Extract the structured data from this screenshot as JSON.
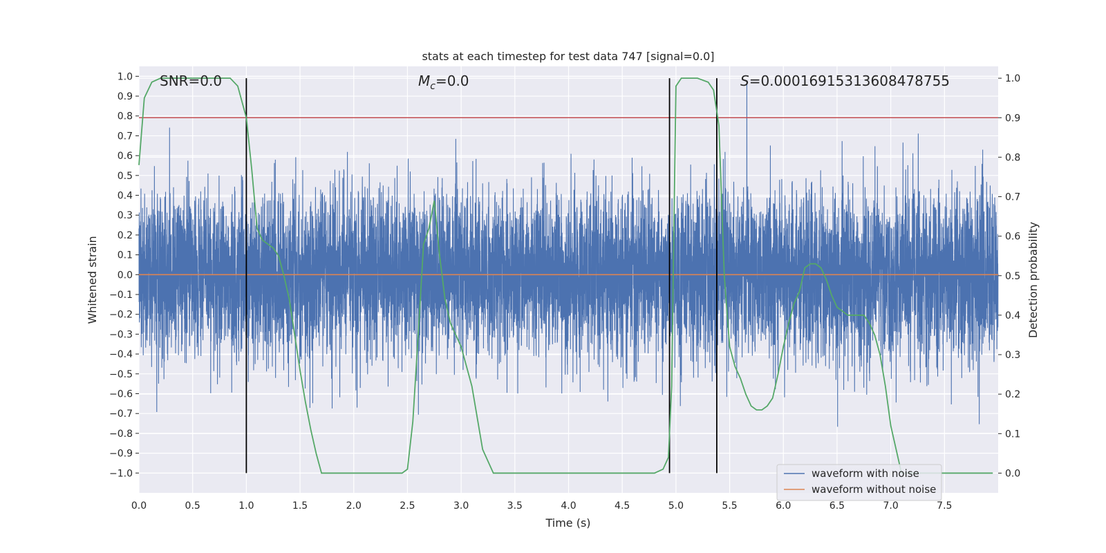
{
  "chart_data": {
    "type": "line",
    "title": "stats at each timestep for test data 747 [signal=0.0]",
    "xlabel": "Time (s)",
    "ylabel": "Whitened strain",
    "y2label": "Detection probability",
    "xlim": [
      0.0,
      8.0
    ],
    "ylim": [
      -1.1,
      1.05
    ],
    "y2lim": [
      -0.05,
      1.03
    ],
    "xticks": [
      0.0,
      0.5,
      1.0,
      1.5,
      2.0,
      2.5,
      3.0,
      3.5,
      4.0,
      4.5,
      5.0,
      5.5,
      6.0,
      6.5,
      7.0,
      7.5
    ],
    "yticks": [
      -1.0,
      -0.9,
      -0.8,
      -0.7,
      -0.6,
      -0.5,
      -0.4,
      -0.3,
      -0.2,
      -0.1,
      0.0,
      0.1,
      0.2,
      0.3,
      0.4,
      0.5,
      0.6,
      0.7,
      0.8,
      0.9,
      1.0
    ],
    "y2ticks": [
      0.0,
      0.1,
      0.2,
      0.3,
      0.4,
      0.5,
      0.6,
      0.7,
      0.8,
      0.9,
      1.0
    ],
    "annotations": {
      "snr": "SNR=0.0",
      "mc_symbol": "M",
      "mc_sub": "c",
      "mc_rest": "=0.0",
      "s_symbol": "S",
      "s_rest": "=0.00016915313608478755"
    },
    "threshold": 0.9,
    "vlines": [
      1.0,
      4.94,
      5.38
    ],
    "series": [
      {
        "name": "waveform with noise",
        "color": "#4c72b0",
        "kind": "noise",
        "seed": 747,
        "n": 8000,
        "sigma": 0.21
      },
      {
        "name": "waveform without noise",
        "color": "#dd8452",
        "kind": "line",
        "x": [
          0.0,
          8.0
        ],
        "y": [
          0.0,
          0.0
        ]
      },
      {
        "name": "detection probability",
        "color": "#55a868",
        "axis": "right",
        "x": [
          0.0,
          0.05,
          0.12,
          0.2,
          0.3,
          0.5,
          0.7,
          0.78,
          0.85,
          0.92,
          1.0,
          1.05,
          1.1,
          1.15,
          1.2,
          1.25,
          1.3,
          1.35,
          1.4,
          1.45,
          1.5,
          1.55,
          1.6,
          1.65,
          1.7,
          1.8,
          2.0,
          2.2,
          2.35,
          2.45,
          2.5,
          2.55,
          2.6,
          2.65,
          2.7,
          2.75,
          2.8,
          2.85,
          2.9,
          3.0,
          3.1,
          3.15,
          3.2,
          3.3,
          3.5,
          4.0,
          4.5,
          4.8,
          4.88,
          4.93,
          4.96,
          5.0,
          5.05,
          5.1,
          5.2,
          5.3,
          5.35,
          5.4,
          5.45,
          5.5,
          5.55,
          5.6,
          5.65,
          5.7,
          5.75,
          5.8,
          5.85,
          5.9,
          5.95,
          6.0,
          6.05,
          6.1,
          6.15,
          6.2,
          6.25,
          6.3,
          6.35,
          6.4,
          6.45,
          6.5,
          6.55,
          6.6,
          6.65,
          6.7,
          6.75,
          6.8,
          6.85,
          6.9,
          6.95,
          7.0,
          7.1,
          7.5,
          7.95
        ],
        "y": [
          0.78,
          0.95,
          0.99,
          1.0,
          1.0,
          1.0,
          1.0,
          1.0,
          1.0,
          0.98,
          0.9,
          0.77,
          0.62,
          0.59,
          0.58,
          0.57,
          0.55,
          0.5,
          0.44,
          0.35,
          0.26,
          0.18,
          0.11,
          0.05,
          0.0,
          0.0,
          0.0,
          0.0,
          0.0,
          0.0,
          0.01,
          0.13,
          0.35,
          0.58,
          0.62,
          0.69,
          0.55,
          0.44,
          0.38,
          0.32,
          0.22,
          0.14,
          0.06,
          0.0,
          0.0,
          0.0,
          0.0,
          0.0,
          0.01,
          0.04,
          0.22,
          0.98,
          1.0,
          1.0,
          1.0,
          0.99,
          0.97,
          0.88,
          0.5,
          0.32,
          0.27,
          0.24,
          0.2,
          0.17,
          0.16,
          0.16,
          0.17,
          0.19,
          0.25,
          0.32,
          0.38,
          0.43,
          0.46,
          0.52,
          0.53,
          0.53,
          0.52,
          0.49,
          0.45,
          0.42,
          0.41,
          0.4,
          0.4,
          0.4,
          0.4,
          0.38,
          0.35,
          0.3,
          0.22,
          0.12,
          0.0,
          0.0,
          0.0
        ]
      }
    ],
    "legend": {
      "placement": "lower-right",
      "entries": [
        "waveform with noise",
        "waveform without noise"
      ]
    }
  }
}
